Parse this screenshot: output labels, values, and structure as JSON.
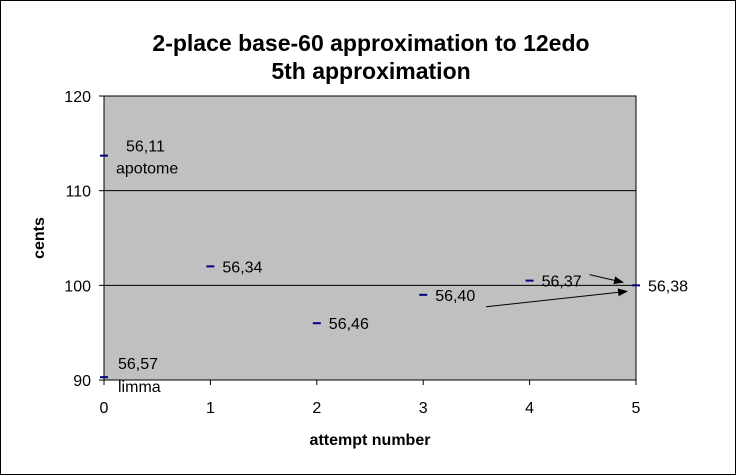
{
  "chart_data": {
    "type": "scatter",
    "title": [
      "2-place base-60 approximation to 12edo",
      "5th approximation"
    ],
    "xlabel": "attempt number",
    "ylabel": "cents",
    "xlim": [
      0,
      5
    ],
    "ylim": [
      90,
      120
    ],
    "xticks": [
      "0",
      "1",
      "2",
      "3",
      "4",
      "5"
    ],
    "yticks": [
      "90",
      "100",
      "110",
      "120"
    ],
    "gridlines_y": [
      100,
      110
    ],
    "legend": "none",
    "colors": {
      "plot_background": "#c0c0c0",
      "marker": "#000080",
      "gridline": "#000000",
      "frame": "#000000"
    },
    "points": [
      {
        "x": 0,
        "y": 113.7,
        "label": "56,11",
        "note": "apotome"
      },
      {
        "x": 0,
        "y": 90.3,
        "label": "56,57",
        "note": "limma"
      },
      {
        "x": 1,
        "y": 102.0,
        "label": "56,34",
        "note": ""
      },
      {
        "x": 2,
        "y": 96.0,
        "label": "56,46",
        "note": ""
      },
      {
        "x": 3,
        "y": 99.0,
        "label": "56,40",
        "note": ""
      },
      {
        "x": 4,
        "y": 100.5,
        "label": "56,37",
        "note": ""
      },
      {
        "x": 5,
        "y": 100.0,
        "label": "56,38",
        "note": ""
      }
    ],
    "arrows": [
      {
        "from_label": "56,37",
        "to_label": "56,38"
      },
      {
        "from_label": "56,40",
        "to_label": "56,38"
      }
    ]
  }
}
